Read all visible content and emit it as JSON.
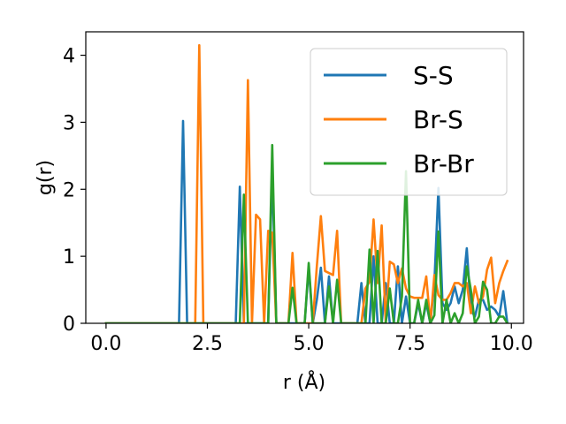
{
  "chart_data": {
    "type": "line",
    "xlabel": "r (Å)",
    "ylabel": "g(r)",
    "xlim": [
      -0.5,
      10.3
    ],
    "ylim": [
      0,
      4.35
    ],
    "xticks": [
      0.0,
      2.5,
      5.0,
      7.5,
      10.0
    ],
    "xtick_labels": [
      "0.0",
      "2.5",
      "5.0",
      "7.5",
      "10.0"
    ],
    "yticks": [
      0,
      1,
      2,
      3,
      4
    ],
    "ytick_labels": [
      "0",
      "1",
      "2",
      "3",
      "4"
    ],
    "grid": false,
    "legend_position": "top-right",
    "series": [
      {
        "name": "S-S",
        "color": "#1f77b4",
        "x": [
          0.0,
          1.8,
          1.9,
          2.0,
          2.1,
          3.2,
          3.3,
          3.4,
          3.5,
          4.0,
          4.1,
          4.2,
          4.9,
          5.0,
          5.1,
          5.2,
          5.3,
          5.4,
          5.5,
          5.6,
          5.7,
          5.8,
          6.2,
          6.3,
          6.4,
          6.5,
          6.6,
          6.7,
          6.8,
          6.9,
          7.0,
          7.1,
          7.2,
          7.3,
          7.4,
          7.5,
          7.6,
          7.7,
          7.8,
          7.9,
          8.0,
          8.1,
          8.2,
          8.3,
          8.4,
          8.5,
          8.6,
          8.7,
          8.8,
          8.9,
          9.0,
          9.1,
          9.2,
          9.3,
          9.4,
          9.5,
          9.6,
          9.7,
          9.8,
          9.9
        ],
        "y": [
          0,
          0,
          3.02,
          0,
          0,
          0,
          2.04,
          0,
          0,
          0,
          2.3,
          0,
          0,
          0.83,
          0,
          0.35,
          0.83,
          0,
          0.7,
          0,
          0,
          0,
          0,
          0.6,
          0,
          0,
          1.0,
          0,
          0,
          0.6,
          0,
          0,
          0.85,
          0,
          0.4,
          0,
          0,
          0.3,
          0,
          0.3,
          0,
          0.6,
          2.02,
          0.3,
          0.2,
          0.3,
          0.55,
          0.3,
          0.5,
          1.12,
          0.2,
          0.1,
          0.35,
          0.35,
          0.2,
          0.25,
          0.2,
          0.1,
          0.48,
          0
        ]
      },
      {
        "name": "Br-S",
        "color": "#ff7f0e",
        "x": [
          0.0,
          2.1,
          2.2,
          2.3,
          2.4,
          3.3,
          3.4,
          3.5,
          3.6,
          3.7,
          3.8,
          3.9,
          4.0,
          4.1,
          4.2,
          4.3,
          4.4,
          4.5,
          4.6,
          4.7,
          4.8,
          4.9,
          5.0,
          5.1,
          5.2,
          5.3,
          5.4,
          5.5,
          5.6,
          5.7,
          5.8,
          5.9,
          6.0,
          6.1,
          6.2,
          6.3,
          6.4,
          6.5,
          6.6,
          6.7,
          6.8,
          6.9,
          7.0,
          7.1,
          7.2,
          7.3,
          7.4,
          7.5,
          7.6,
          7.7,
          7.8,
          7.9,
          8.0,
          8.1,
          8.2,
          8.3,
          8.4,
          8.5,
          8.6,
          8.7,
          8.8,
          8.9,
          9.0,
          9.1,
          9.2,
          9.3,
          9.4,
          9.5,
          9.6,
          9.7,
          9.8,
          9.9
        ],
        "y": [
          0,
          0,
          0,
          4.15,
          0,
          0,
          0,
          3.63,
          0,
          1.62,
          1.55,
          0,
          1.38,
          1.35,
          0,
          0,
          0,
          0,
          1.05,
          0,
          0,
          0,
          0,
          0,
          0.85,
          1.6,
          0.78,
          0.75,
          0.72,
          1.38,
          0,
          0,
          0,
          0,
          0,
          0,
          0.52,
          0.62,
          1.55,
          0.6,
          1.46,
          0,
          0.92,
          0.88,
          0.6,
          0.82,
          0.52,
          0.4,
          0.38,
          0.38,
          0.38,
          0.7,
          0,
          0.72,
          0.42,
          0.35,
          0.35,
          0.45,
          0.6,
          0.6,
          0.55,
          0.6,
          0.15,
          0.55,
          0.3,
          0.4,
          0.8,
          0.98,
          0.3,
          0.6,
          0.78,
          0.93
        ]
      },
      {
        "name": "Br-Br",
        "color": "#2ca02c",
        "x": [
          0.0,
          3.3,
          3.4,
          3.5,
          4.0,
          4.1,
          4.2,
          4.5,
          4.6,
          4.7,
          4.9,
          5.0,
          5.1,
          5.4,
          5.5,
          5.6,
          5.7,
          5.8,
          6.3,
          6.4,
          6.5,
          6.6,
          6.7,
          6.8,
          6.9,
          7.0,
          7.1,
          7.2,
          7.3,
          7.4,
          7.5,
          7.6,
          7.7,
          7.8,
          7.9,
          8.0,
          8.1,
          8.2,
          8.3,
          8.4,
          8.5,
          8.6,
          8.7,
          8.8,
          8.9,
          9.0,
          9.1,
          9.2,
          9.3,
          9.4,
          9.5,
          9.6,
          9.7,
          9.8,
          9.9
        ],
        "y": [
          0,
          0,
          1.92,
          0,
          0,
          2.66,
          0,
          0,
          0.53,
          0,
          0,
          0.9,
          0,
          0,
          0.55,
          0,
          0.65,
          0,
          0,
          0,
          1.1,
          0,
          1.08,
          0,
          0,
          0.52,
          0,
          0,
          0.4,
          2.27,
          0,
          0,
          0.35,
          0,
          0.35,
          0,
          0.12,
          1.37,
          0,
          0.35,
          0,
          0.15,
          0,
          0.15,
          0.85,
          0.5,
          0,
          0.1,
          0.62,
          0.5,
          0,
          0,
          0.1,
          0.1,
          0
        ]
      }
    ]
  }
}
